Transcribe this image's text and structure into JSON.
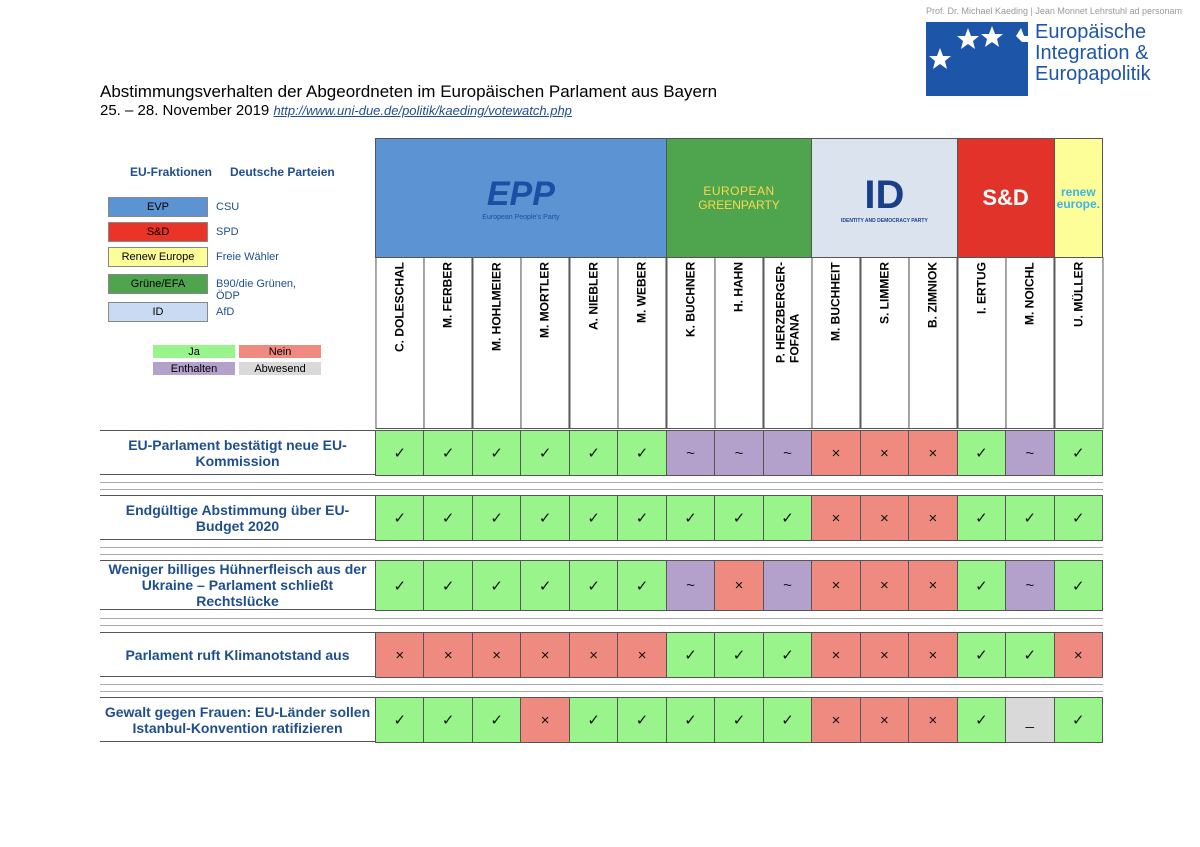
{
  "header": {
    "credit": "Prof. Dr. Michael Kaeding | Jean Monnet Lehrstuhl ad personam",
    "logo_text": [
      "Europäische",
      "Integration &",
      "Europapolitik"
    ]
  },
  "title": "Abstimmungsverhalten der Abgeordneten im Europäischen Parlament aus Bayern",
  "date": "25. – 28. November 2019",
  "url": "http://www.uni-due.de/politik/kaeding/votewatch.php",
  "legend": {
    "heading_fractions": "EU-Fraktionen",
    "heading_parties": "Deutsche Parteien",
    "rows": [
      {
        "fraction": "EVP",
        "party": "CSU",
        "color": "#5b93d3"
      },
      {
        "fraction": "S&D",
        "party": "SPD",
        "color": "#e93427"
      },
      {
        "fraction": "Renew Europe",
        "party": "Freie Wähler",
        "color": "#fefe99"
      },
      {
        "fraction": "Grüne/EFA",
        "party": "B90/die Grünen, ÖDP",
        "color": "#4ea54e"
      },
      {
        "fraction": "ID",
        "party": "AfD",
        "color": "#c9dbf3"
      }
    ]
  },
  "vote_legend": [
    {
      "label": "Ja",
      "color": "#99f58b",
      "symbol": "✓"
    },
    {
      "label": "Nein",
      "color": "#ee8a80",
      "symbol": "×"
    },
    {
      "label": "Enthalten",
      "color": "#b3a1cc",
      "symbol": "~"
    },
    {
      "label": "Abwesend",
      "color": "#d9d9d9",
      "symbol": "_"
    }
  ],
  "groups": [
    {
      "texts": [
        "EPP",
        "European People's Party"
      ],
      "color": "#5b93d3",
      "span": 6
    },
    {
      "texts": [
        "EUROPEAN",
        "GREENPARTY"
      ],
      "color": "#4ea54e",
      "span": 3
    },
    {
      "texts": [
        "ID",
        "IDENTITY AND DEMOCRACY PARTY"
      ],
      "color": "#dbe3ef",
      "span": 3
    },
    {
      "texts": [
        "S&D"
      ],
      "color": "#e2332a",
      "span": 2
    },
    {
      "texts": [
        "renew",
        "europe."
      ],
      "color": "#fefe99",
      "span": 1
    }
  ],
  "members": [
    "C. DOLESCHAL",
    "M. FERBER",
    "M. HOHLMEIER",
    "M. MORTLER",
    "A. NIEBLER",
    "M. WEBER",
    "K. BUCHNER",
    "H. HAHN",
    "P. HERZBERGER-\nFOFANA",
    "M. BUCHHEIT",
    "S. LIMMER",
    "B. ZIMNIOK",
    "I. ERTUG",
    "M. NOICHL",
    "U. MÜLLER"
  ],
  "votes": [
    {
      "title": "EU-Parlament bestätigt neue EU-Kommission",
      "votes": [
        "✓",
        "✓",
        "✓",
        "✓",
        "✓",
        "✓",
        "~",
        "~",
        "~",
        "×",
        "×",
        "×",
        "✓",
        "~",
        "✓"
      ]
    },
    {
      "title": "Endgültige Abstimmung über EU-Budget 2020",
      "votes": [
        "✓",
        "✓",
        "✓",
        "✓",
        "✓",
        "✓",
        "✓",
        "✓",
        "✓",
        "×",
        "×",
        "×",
        "✓",
        "✓",
        "✓"
      ]
    },
    {
      "title": "Weniger billiges Hühnerfleisch aus der Ukraine – Parlament schließt Rechtslücke",
      "votes": [
        "✓",
        "✓",
        "✓",
        "✓",
        "✓",
        "✓",
        "~",
        "×",
        "~",
        "×",
        "×",
        "×",
        "✓",
        "~",
        "✓"
      ]
    },
    {
      "title": "Parlament ruft Klimanotstand aus",
      "votes": [
        "×",
        "×",
        "×",
        "×",
        "×",
        "×",
        "✓",
        "✓",
        "✓",
        "×",
        "×",
        "×",
        "✓",
        "✓",
        "×"
      ]
    },
    {
      "title": "Gewalt gegen Frauen: EU-Länder sollen Istanbul-Konvention ratifizieren",
      "votes": [
        "✓",
        "✓",
        "✓",
        "×",
        "✓",
        "✓",
        "✓",
        "✓",
        "✓",
        "×",
        "×",
        "×",
        "✓",
        "_",
        "✓"
      ]
    }
  ]
}
